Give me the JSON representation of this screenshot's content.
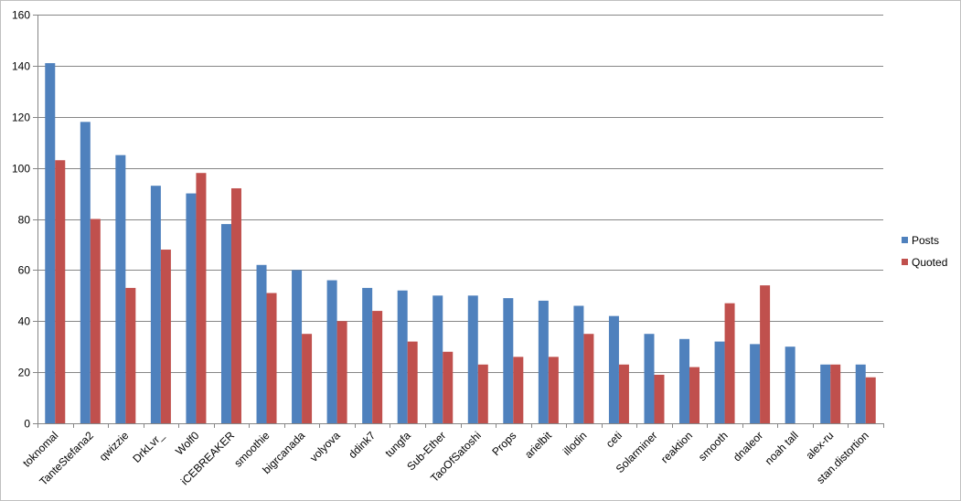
{
  "chart_data": {
    "type": "bar",
    "title": "",
    "xlabel": "",
    "ylabel": "",
    "ylim": [
      0,
      160
    ],
    "yticks": [
      0,
      20,
      40,
      60,
      80,
      100,
      120,
      140,
      160
    ],
    "grid": true,
    "legend_position": "right",
    "categories": [
      "toknomal",
      "TanteStefana2",
      "qwizzie",
      "DrkLvr_",
      "Wolf0",
      "iCEBREAKER",
      "smoothie",
      "bigrcanada",
      "volyova",
      "ddink7",
      "tungfa",
      "Sub-Ether",
      "TaoOfSatoshi",
      "Props",
      "arielbit",
      "illodin",
      "ceti",
      "Solarminer",
      "reaktion",
      "smooth",
      "dnaleor",
      "noah tall",
      "alex-ru",
      "stan.distortion"
    ],
    "series": [
      {
        "name": "Posts",
        "color": "#4f81bd",
        "values": [
          141,
          118,
          105,
          93,
          90,
          78,
          62,
          60,
          56,
          53,
          52,
          50,
          50,
          49,
          48,
          46,
          42,
          35,
          33,
          32,
          31,
          30,
          23,
          23
        ]
      },
      {
        "name": "Quoted",
        "color": "#c0504d",
        "values": [
          103,
          80,
          53,
          68,
          98,
          92,
          51,
          35,
          40,
          44,
          32,
          28,
          23,
          26,
          26,
          35,
          23,
          19,
          22,
          47,
          54,
          0,
          23,
          18
        ]
      }
    ]
  }
}
